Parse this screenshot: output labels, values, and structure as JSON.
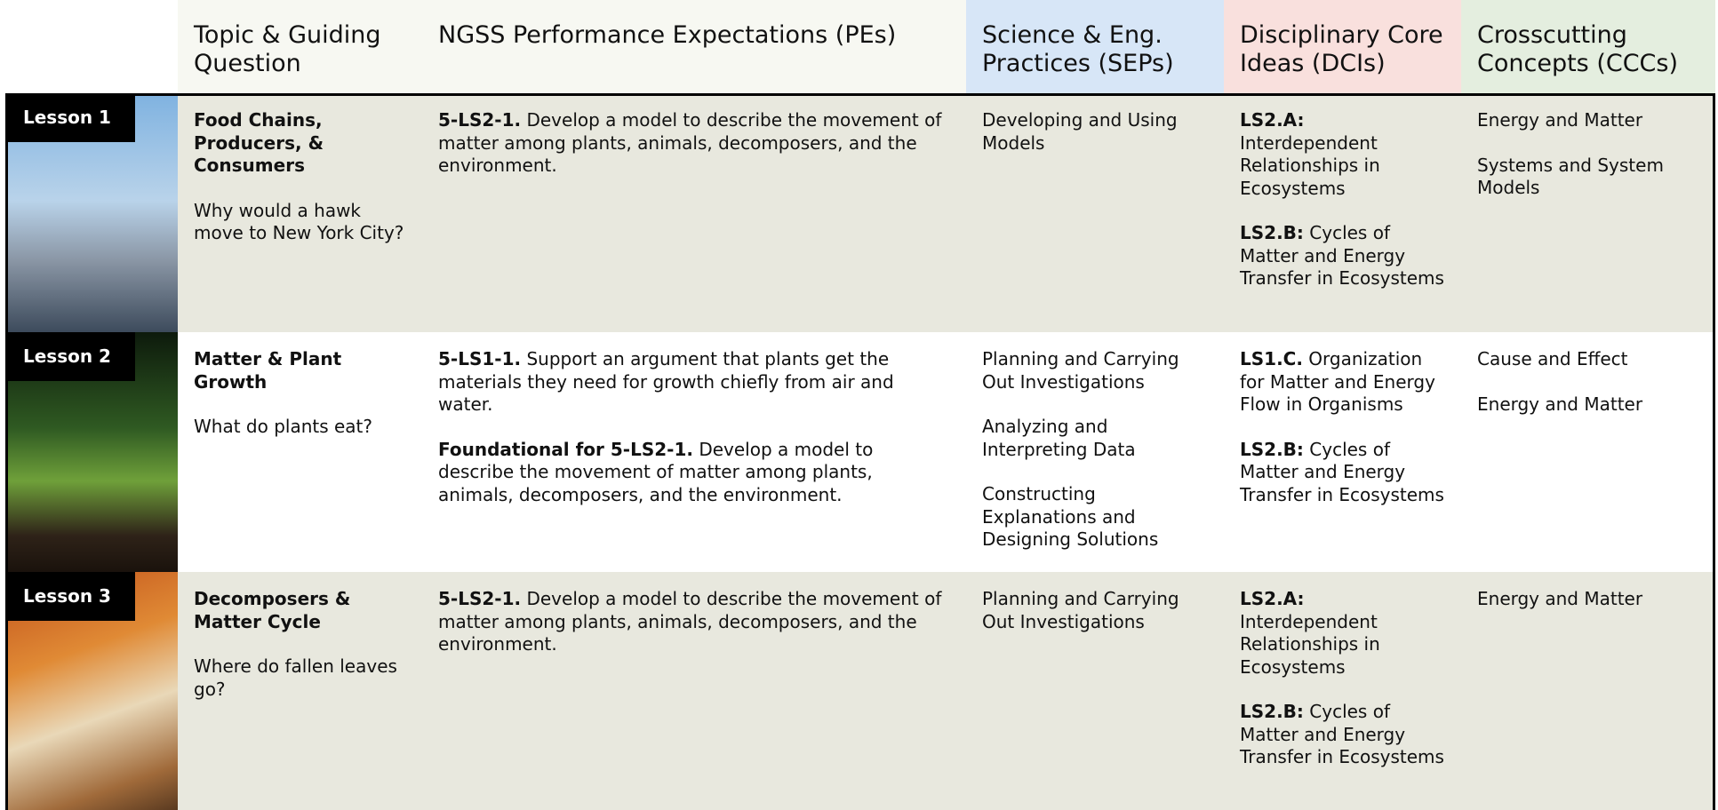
{
  "header": {
    "columns": [
      "Topic & Guiding Question",
      "NGSS Performance Expectations (PEs)",
      "Science & Eng. Practices (SEPs)",
      "Disciplinary Core Ideas (DCIs)",
      "Crosscutting Concepts (CCCs)"
    ]
  },
  "rows": [
    {
      "lesson": "Lesson 1",
      "topic": "Food Chains, Producers, & Consumers",
      "question": "Why would a hawk move to New York City?",
      "pes": [
        {
          "code": "5-LS2-1.",
          "text": "Develop a model to describe the movement of matter among plants, animals, decomposers, and the environment."
        }
      ],
      "seps": [
        "Developing and Using Models"
      ],
      "dcis": [
        {
          "code": "LS2.A:",
          "text": "Interdependent Relationships in Ecosystems"
        },
        {
          "code": "LS2.B:",
          "text": "Cycles of Matter and Energy Transfer in Ecosystems"
        }
      ],
      "cccs": [
        "Energy and Matter",
        "Systems and System Models"
      ]
    },
    {
      "lesson": "Lesson 2",
      "topic": "Matter & Plant Growth",
      "question": "What do plants eat?",
      "pes": [
        {
          "code": "5-LS1-1.",
          "text": "Support an argument that plants get the materials they need for growth chiefly from air and water."
        },
        {
          "code": "Foundational for 5-LS2-1.",
          "text": "Develop a model to describe the movement of matter among plants, animals, decomposers, and the environment."
        }
      ],
      "seps": [
        "Planning and Carrying Out Investigations",
        "Analyzing and Interpreting Data",
        "Constructing Explanations and Designing Solutions"
      ],
      "dcis": [
        {
          "code": "LS1.C.",
          "text": "Organization for Matter and Energy Flow in Organisms"
        },
        {
          "code": "LS2.B:",
          "text": "Cycles of Matter and Energy Transfer in Ecosystems"
        }
      ],
      "cccs": [
        "Cause and Effect",
        "Energy and Matter"
      ]
    },
    {
      "lesson": "Lesson 3",
      "topic": "Decomposers & Matter Cycle",
      "question": "Where do fallen leaves go?",
      "pes": [
        {
          "code": "5-LS2-1.",
          "text": "Develop a model to describe the movement of matter among plants, animals, decomposers, and the environment."
        }
      ],
      "seps": [
        "Planning and Carrying Out Investigations"
      ],
      "dcis": [
        {
          "code": "LS2.A:",
          "text": "Interdependent Relationships in Ecosystems"
        },
        {
          "code": "LS2.B:",
          "text": "Cycles of Matter and Energy Transfer in Ecosystems"
        }
      ],
      "cccs": [
        "Energy and Matter"
      ]
    }
  ]
}
